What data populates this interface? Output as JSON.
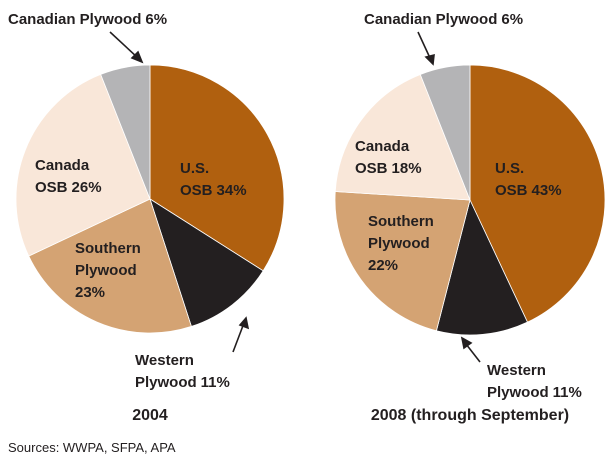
{
  "chart_data": [
    {
      "type": "pie",
      "title": "2004",
      "categories": [
        "U.S. OSB",
        "Western Plywood",
        "Southern Plywood",
        "Canada OSB",
        "Canadian Plywood"
      ],
      "values": [
        34,
        11,
        23,
        26,
        6
      ],
      "value_labels": [
        "34%",
        "11%",
        "23%",
        "26%",
        "6%"
      ],
      "colors": [
        "#b0600f",
        "#231f20",
        "#d4a373",
        "#f9e7d9",
        "#b4b4b6"
      ]
    },
    {
      "type": "pie",
      "title": "2008 (through September)",
      "categories": [
        "U.S. OSB",
        "Western Plywood",
        "Southern Plywood",
        "Canada OSB",
        "Canadian Plywood"
      ],
      "values": [
        43,
        11,
        22,
        18,
        6
      ],
      "value_labels": [
        "43%",
        "11%",
        "22%",
        "18%",
        "6%"
      ],
      "colors": [
        "#b0600f",
        "#231f20",
        "#d4a373",
        "#f9e7d9",
        "#b4b4b6"
      ]
    }
  ],
  "source": "Sources: WWPA, SFPA, APA"
}
